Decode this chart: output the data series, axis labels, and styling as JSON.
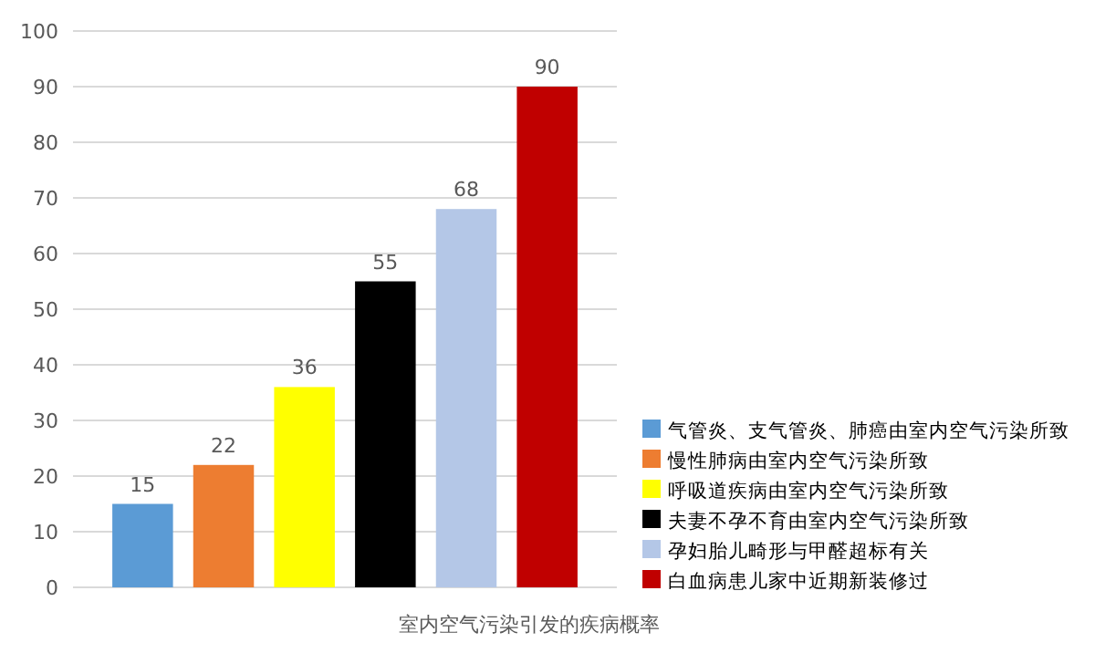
{
  "chart_data": {
    "type": "bar",
    "xlabel": "室内空气污染引发的疾病概率",
    "categories": [
      null
    ],
    "series": [
      {
        "name": "气管炎、支气管炎、肺癌由室内空气污染所致",
        "color": "#5b9bd5",
        "values": [
          15
        ]
      },
      {
        "name": "慢性肺病由室内空气污染所致",
        "color": "#ed7d31",
        "values": [
          22
        ]
      },
      {
        "name": "呼吸道疾病由室内空气污染所致",
        "color": "#ffff00",
        "values": [
          36
        ]
      },
      {
        "name": "夫妻不孕不育由室内空气污染所致",
        "color": "#000000",
        "values": [
          55
        ]
      },
      {
        "name": "孕妇胎儿畸形与甲醛超标有关",
        "color": "#b4c7e7",
        "values": [
          68
        ]
      },
      {
        "name": "白血病患儿家中近期新装修过",
        "color": "#c00000",
        "values": [
          90
        ]
      }
    ],
    "ylim": [
      0,
      100
    ],
    "yticks": [
      0,
      10,
      20,
      30,
      40,
      50,
      60,
      70,
      80,
      90,
      100
    ],
    "grid": "y",
    "legend": "bottom right",
    "data_labels": true
  }
}
